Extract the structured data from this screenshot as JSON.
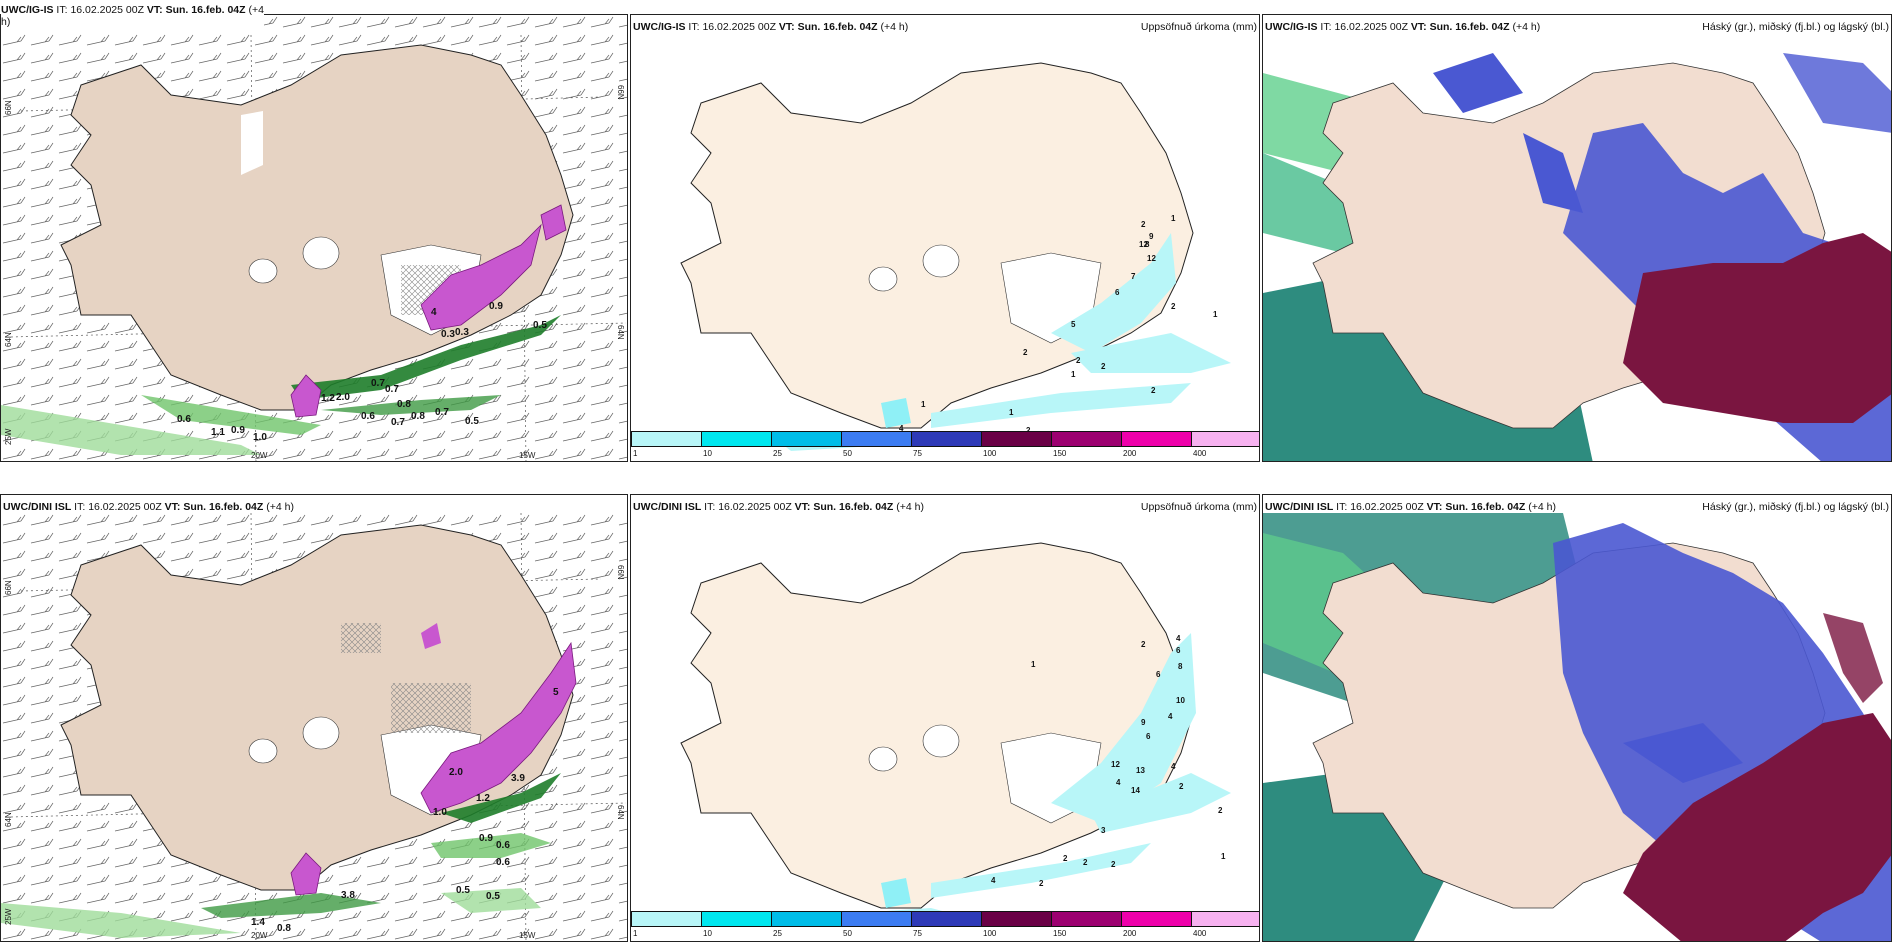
{
  "rows": [
    {
      "model": "UWC/IG-IS",
      "it_label": "IT:",
      "it_value": "16.02.2025 00Z",
      "vt_label": "VT:",
      "vt_value": "Sun. 16.feb. 04Z",
      "lead": "(+4",
      "lead_full": "(+4 h)",
      "lead_wrap": "h)",
      "left_values": [
        {
          "t": "0.5"
        },
        {
          "t": "0.7"
        },
        {
          "t": "0.7"
        },
        {
          "t": "0.8"
        },
        {
          "t": "0.8"
        },
        {
          "t": "0.7"
        },
        {
          "t": "0.6"
        },
        {
          "t": "0.7"
        },
        {
          "t": "0.5"
        },
        {
          "t": "0.6"
        },
        {
          "t": "0.9"
        },
        {
          "t": "1.0"
        },
        {
          "t": "1.1"
        },
        {
          "t": "0.9"
        },
        {
          "t": "0.3"
        },
        {
          "t": "0.3"
        },
        {
          "t": "1.2"
        },
        {
          "t": "4"
        },
        {
          "t": "2.0"
        }
      ],
      "mid_values": [
        {
          "t": "2"
        },
        {
          "t": "1"
        },
        {
          "t": "9"
        },
        {
          "t": "8"
        },
        {
          "t": "12"
        },
        {
          "t": "7"
        },
        {
          "t": "12"
        },
        {
          "t": "6"
        },
        {
          "t": "2"
        },
        {
          "t": "1"
        },
        {
          "t": "5"
        },
        {
          "t": "2"
        },
        {
          "t": "2"
        },
        {
          "t": "2"
        },
        {
          "t": "1"
        },
        {
          "t": "2"
        },
        {
          "t": "2"
        },
        {
          "t": "2"
        },
        {
          "t": "2"
        },
        {
          "t": "2"
        },
        {
          "t": "1"
        },
        {
          "t": "4"
        },
        {
          "t": "3"
        },
        {
          "t": "1"
        },
        {
          "t": "2"
        }
      ]
    },
    {
      "model": "UWC/DINI ISL",
      "it_label": "IT:",
      "it_value": "16.02.2025 00Z",
      "vt_label": "VT:",
      "vt_value": "Sun. 16.feb. 04Z",
      "lead": "(+4 h)",
      "lead_full": "(+4 h)",
      "lead_wrap": "",
      "left_values": [
        {
          "t": "1.2"
        },
        {
          "t": "0.9"
        },
        {
          "t": "0.6"
        },
        {
          "t": "0.6"
        },
        {
          "t": "0.5"
        },
        {
          "t": "0.5"
        },
        {
          "t": "1.4"
        },
        {
          "t": "0.8"
        },
        {
          "t": "3.8"
        },
        {
          "t": "5"
        },
        {
          "t": "2.0"
        },
        {
          "t": "3.9"
        },
        {
          "t": "1.0"
        }
      ],
      "mid_values": [
        {
          "t": "2"
        },
        {
          "t": "4"
        },
        {
          "t": "6"
        },
        {
          "t": "8"
        },
        {
          "t": "6"
        },
        {
          "t": "10"
        },
        {
          "t": "4"
        },
        {
          "t": "9"
        },
        {
          "t": "6"
        },
        {
          "t": "4"
        },
        {
          "t": "13"
        },
        {
          "t": "14"
        },
        {
          "t": "4"
        },
        {
          "t": "12"
        },
        {
          "t": "2"
        },
        {
          "t": "2"
        },
        {
          "t": "3"
        },
        {
          "t": "2"
        },
        {
          "t": "2"
        },
        {
          "t": "2"
        },
        {
          "t": "4"
        },
        {
          "t": "3"
        },
        {
          "t": "1"
        },
        {
          "t": "1"
        },
        {
          "t": "2"
        }
      ]
    }
  ],
  "mid_title": "Uppsöfnuð úrkoma (mm)",
  "right_title": "Háský (gr.), miðský (fj.bl.) og lágský (bl.)",
  "axis": {
    "lon_left": "20W",
    "lon_right": "15W",
    "lat_top": "66N",
    "lat_mid": "64N",
    "lat_bot": "25W",
    "lat_top_r": "66N",
    "lat_mid_r": "64N"
  },
  "legend": {
    "ticks": [
      "1",
      "10",
      "25",
      "50",
      "75",
      "100",
      "150",
      "200",
      "400"
    ],
    "colors": [
      "#b8f6f8",
      "#00e7ef",
      "#00bde8",
      "#3c7cf2",
      "#2e3ab8",
      "#6a0046",
      "#9c0070",
      "#ee00aa",
      "#f7b2f0"
    ]
  },
  "colors": {
    "land": "#f3e3d3",
    "land_left": "#e6d3c3",
    "pink": "#c857cf",
    "green": "#52a84e",
    "teal": "#2e8c7f",
    "blue": "#4a58d2",
    "maroon": "#7a1540",
    "cyan": "#8ff0f6"
  }
}
